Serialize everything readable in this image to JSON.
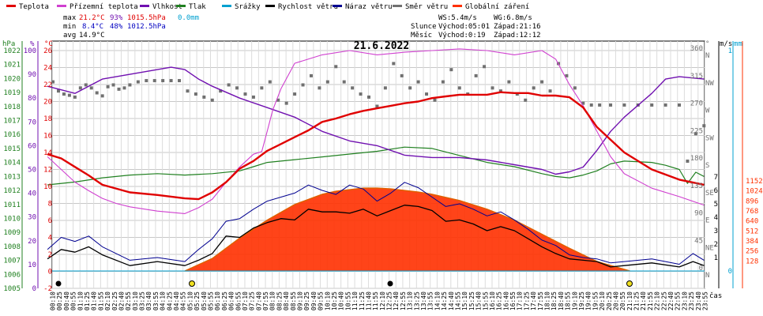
{
  "legend": [
    {
      "label": "Teplota",
      "color": "#e00000"
    },
    {
      "label": "Přízemní teplota",
      "color": "#d040d0"
    },
    {
      "label": "Vlhkost",
      "color": "#7010b0"
    },
    {
      "label": "Tlak",
      "color": "#208020"
    },
    {
      "label": "Srážky",
      "color": "#00a0d0"
    },
    {
      "label": "Rychlost větru",
      "color": "#000000"
    },
    {
      "label": "Náraz větru",
      "color": "#000090"
    },
    {
      "label": "Směr větru",
      "color": "#707070"
    },
    {
      "label": "Globální záření",
      "color": "#ff3000"
    }
  ],
  "stats": {
    "max_label": "max",
    "max_temp": "21.2°C",
    "max_hum": "93%",
    "max_press": "1015.5hPa",
    "max_rain": "0.0mm",
    "min_label": "min",
    "min_temp": "8.4°C",
    "min_hum": "48%",
    "min_press": "1012.5hPa",
    "avg_label": "avg",
    "avg_temp": "14.9°C"
  },
  "astro": {
    "ws": "WS:5.4m/s",
    "wg": "WG:6.8m/s",
    "sun_label": "Slunce",
    "sun_rise": "Východ:05:01",
    "sun_set": "Západ:21:16",
    "moon_label": "Měsíc",
    "moon_rise": "Východ:0:19",
    "moon_set": "Západ:12:12"
  },
  "date": "21.6.2022",
  "axis_units": {
    "hpa": "hPa",
    "pct": "%",
    "temp": "°C",
    "wind": "m/s",
    "rain": "mm",
    "dir": "°",
    "time": "čas"
  },
  "colors": {
    "temp": "#e00000",
    "ground": "#d040d0",
    "hum": "#7010b0",
    "press": "#208020",
    "rain": "#00a0d0",
    "wind": "#000000",
    "gust": "#000090",
    "dir": "#707070",
    "solar": "#ff3000",
    "solar_fill": "#ff3000",
    "grid": "#c8c8c8"
  },
  "chart_data": {
    "type": "line",
    "title": "21.6.2022",
    "xlabel": "čas",
    "x_range": [
      "00:10",
      "23:55"
    ],
    "x_ticks": [
      "00:10",
      "00:25",
      "00:40",
      "00:55",
      "01:10",
      "01:25",
      "01:40",
      "01:55",
      "02:10",
      "02:25",
      "02:40",
      "02:55",
      "03:10",
      "03:25",
      "03:40",
      "03:55",
      "04:10",
      "04:25",
      "04:40",
      "04:55",
      "05:10",
      "05:25",
      "05:40",
      "05:55",
      "06:10",
      "06:25",
      "06:40",
      "06:55",
      "07:10",
      "07:25",
      "07:40",
      "07:55",
      "08:10",
      "08:25",
      "08:40",
      "08:55",
      "09:10",
      "09:25",
      "09:40",
      "09:55",
      "10:10",
      "10:25",
      "10:40",
      "10:55",
      "11:10",
      "11:25",
      "11:40",
      "11:55",
      "12:10",
      "12:25",
      "12:40",
      "12:55",
      "13:10",
      "13:25",
      "13:40",
      "13:55",
      "14:10",
      "14:25",
      "14:40",
      "14:55",
      "15:10",
      "15:25",
      "15:40",
      "15:55",
      "16:10",
      "16:25",
      "16:40",
      "16:55",
      "17:10",
      "17:25",
      "17:40",
      "17:55",
      "18:10",
      "18:25",
      "18:40",
      "18:55",
      "19:10",
      "19:25",
      "19:40",
      "19:55",
      "20:10",
      "20:25",
      "20:40",
      "20:55",
      "21:10",
      "21:25",
      "21:40",
      "21:55",
      "22:10",
      "22:25",
      "22:40",
      "22:55",
      "23:10",
      "23:25",
      "23:40",
      "23:55"
    ],
    "axes": {
      "pressure_hpa": {
        "range": [
          1005,
          1023
        ],
        "ticks": [
          1005,
          1006,
          1007,
          1008,
          1009,
          1010,
          1011,
          1012,
          1013,
          1014,
          1015,
          1016,
          1017,
          1018,
          1019,
          1020,
          1021,
          1022
        ]
      },
      "humidity_pct": {
        "range": [
          0,
          100
        ],
        "ticks": [
          0,
          10,
          20,
          30,
          40,
          50,
          60,
          70,
          80,
          90,
          100
        ]
      },
      "temperature_c": {
        "range": [
          -2,
          26
        ],
        "ticks": [
          -2,
          0,
          2,
          4,
          6,
          8,
          10,
          12,
          14,
          16,
          18,
          20,
          22,
          24,
          26
        ]
      },
      "wind_ms": {
        "range": [
          0,
          7
        ],
        "ticks": [
          1,
          2,
          3,
          4,
          5,
          6,
          7
        ]
      },
      "rain_mm": {
        "range": [
          0,
          1
        ],
        "ticks": [
          0,
          1
        ]
      },
      "direction_deg": {
        "ticks": [
          {
            "v": 0,
            "l": "N"
          },
          {
            "v": 45,
            "l": "NE"
          },
          {
            "v": 90,
            "l": "E"
          },
          {
            "v": 135,
            "l": "SE"
          },
          {
            "v": 180,
            "l": "S"
          },
          {
            "v": 225,
            "l": "SW"
          },
          {
            "v": 270,
            "l": "W"
          },
          {
            "v": 315,
            "l": "NW"
          },
          {
            "v": 360,
            "l": "N"
          }
        ]
      },
      "solar_wm2": {
        "range": [
          0,
          1152
        ],
        "ticks": [
          128,
          256,
          384,
          512,
          640,
          768,
          896,
          1024,
          1152
        ]
      }
    },
    "series": [
      {
        "name": "Teplota",
        "unit": "°C",
        "x": [
          0,
          0.5,
          1,
          1.5,
          2,
          3,
          4,
          5,
          5.5,
          6,
          6.5,
          7,
          7.5,
          8,
          8.5,
          9,
          9.5,
          10,
          10.5,
          11,
          11.5,
          12,
          12.5,
          13,
          13.5,
          14,
          14.5,
          15,
          15.5,
          16,
          16.5,
          17,
          17.5,
          18,
          18.5,
          19,
          19.5,
          20,
          21,
          22,
          23,
          23.9
        ],
        "y": [
          13.8,
          13.3,
          12.3,
          11.3,
          10.2,
          9.3,
          9.0,
          8.6,
          8.5,
          9.3,
          10.5,
          12.1,
          13.0,
          14.2,
          15.0,
          15.8,
          16.6,
          17.6,
          18.0,
          18.5,
          18.9,
          19.2,
          19.5,
          19.8,
          20.0,
          20.4,
          20.6,
          20.8,
          20.8,
          20.8,
          21.1,
          21.0,
          21.0,
          20.7,
          20.7,
          20.5,
          19.3,
          17.0,
          14.0,
          12.0,
          10.8,
          10.2
        ]
      },
      {
        "name": "Přízemní teplota",
        "unit": "°C",
        "x": [
          0,
          0.5,
          1,
          1.5,
          2,
          2.5,
          3,
          4,
          5,
          5.5,
          6,
          6.5,
          7,
          7.5,
          7.8,
          8,
          8.2,
          8.5,
          9,
          10,
          11,
          12,
          13,
          14,
          15,
          16,
          17,
          18,
          18.5,
          19,
          19.5,
          20,
          20.5,
          21,
          22,
          23,
          23.9
        ],
        "y": [
          13.5,
          12.0,
          10.5,
          9.5,
          8.6,
          8.0,
          7.6,
          7.1,
          6.8,
          7.5,
          8.5,
          10.5,
          12.3,
          13.8,
          14.1,
          16.5,
          19.0,
          21.5,
          24.5,
          25.5,
          26.0,
          25.5,
          25.8,
          26.0,
          26.2,
          26.0,
          25.5,
          26.0,
          25.0,
          22.0,
          19.5,
          16.5,
          13.5,
          11.5,
          9.8,
          8.8,
          7.8
        ]
      },
      {
        "name": "Vlhkost",
        "unit": "%",
        "x": [
          0,
          1,
          2,
          3,
          4,
          4.5,
          5,
          5.5,
          6,
          7,
          8,
          9,
          10,
          11,
          12,
          13,
          14,
          15,
          16,
          17,
          18,
          18.5,
          19,
          19.5,
          20,
          20.5,
          21,
          22,
          22.5,
          23,
          23.9
        ],
        "y": [
          85,
          82,
          88,
          90,
          92,
          93,
          92,
          88,
          85,
          80,
          76,
          72,
          66,
          62,
          60,
          56,
          55,
          55,
          54,
          52,
          50,
          48,
          49,
          51,
          58,
          66,
          72,
          82,
          88,
          89,
          88
        ]
      },
      {
        "name": "Tlak",
        "unit": "hPa",
        "x": [
          0,
          1,
          2,
          3,
          4,
          5,
          6,
          7,
          7.5,
          8,
          9,
          10,
          11,
          12,
          13,
          14,
          15,
          16,
          17,
          18,
          18.5,
          19,
          19.5,
          20,
          20.5,
          21,
          22,
          22.5,
          23,
          23.3,
          23.6,
          23.9
        ],
        "y": [
          1012.4,
          1012.6,
          1012.9,
          1013.1,
          1013.2,
          1013.1,
          1013.2,
          1013.4,
          1013.7,
          1014.0,
          1014.2,
          1014.4,
          1014.6,
          1014.8,
          1015.1,
          1015.0,
          1014.5,
          1014.0,
          1013.7,
          1013.2,
          1013.0,
          1012.9,
          1013.1,
          1013.4,
          1013.9,
          1014.1,
          1014.0,
          1013.8,
          1013.5,
          1012.5,
          1013.3,
          1013.0
        ]
      },
      {
        "name": "Rychlost větru",
        "unit": "m/s",
        "x": [
          0,
          0.5,
          1,
          1.5,
          2,
          3,
          4,
          5,
          5.5,
          6,
          6.5,
          7,
          7.5,
          8,
          8.5,
          9,
          9.5,
          10,
          10.5,
          11,
          11.5,
          12,
          12.5,
          13,
          13.5,
          14,
          14.5,
          15,
          15.5,
          16,
          16.5,
          17,
          17.5,
          18,
          18.5,
          19,
          19.5,
          20,
          20.5,
          21,
          22,
          23,
          23.5,
          23.9
        ],
        "y": [
          0.9,
          1.6,
          1.4,
          1.8,
          1.2,
          0.4,
          0.7,
          0.4,
          0.8,
          1.3,
          2.6,
          2.5,
          3.2,
          3.6,
          3.9,
          3.8,
          4.6,
          4.4,
          4.4,
          4.3,
          4.6,
          4.1,
          4.5,
          4.9,
          4.8,
          4.5,
          3.7,
          3.8,
          3.5,
          3.0,
          3.3,
          3.0,
          2.4,
          1.8,
          1.3,
          0.9,
          0.8,
          0.7,
          0.3,
          0.4,
          0.6,
          0.3,
          0.7,
          0.4
        ]
      },
      {
        "name": "Náraz větru",
        "unit": "m/s",
        "x": [
          0,
          0.5,
          1,
          1.5,
          2,
          3,
          4,
          5,
          5.5,
          6,
          6.5,
          7,
          7.5,
          8,
          8.5,
          9,
          9.5,
          10,
          10.5,
          11,
          11.5,
          12,
          12.5,
          13,
          13.5,
          14,
          14.5,
          15,
          15.5,
          16,
          16.5,
          17,
          17.5,
          18,
          18.5,
          19,
          19.5,
          20,
          20.5,
          21,
          22,
          23,
          23.5,
          23.9
        ],
        "y": [
          1.6,
          2.5,
          2.2,
          2.6,
          1.8,
          0.8,
          1.0,
          0.7,
          1.6,
          2.4,
          3.7,
          3.9,
          4.6,
          5.2,
          5.5,
          5.8,
          6.4,
          6.0,
          5.7,
          6.4,
          6.1,
          5.2,
          5.8,
          6.6,
          6.2,
          5.5,
          4.8,
          5.0,
          4.6,
          4.1,
          4.4,
          3.8,
          3.1,
          2.3,
          1.9,
          1.2,
          1.0,
          0.9,
          0.6,
          0.7,
          0.9,
          0.5,
          1.3,
          0.8
        ]
      },
      {
        "name": "Globální záření",
        "unit": "W/m²",
        "x": [
          5,
          6,
          7,
          8,
          9,
          10,
          10.5,
          11,
          11.5,
          12,
          12.5,
          13,
          13.5,
          14,
          15,
          16,
          17,
          18,
          19,
          20,
          21.2
        ],
        "y": [
          0,
          160,
          420,
          650,
          850,
          980,
          1020,
          1040,
          1060,
          1060,
          1050,
          1030,
          1010,
          980,
          900,
          790,
          650,
          470,
          290,
          120,
          0
        ]
      },
      {
        "name": "Směr větru",
        "unit": "°",
        "x": [
          0.2,
          0.4,
          0.6,
          0.8,
          1.0,
          1.2,
          1.4,
          1.6,
          1.8,
          2.0,
          2.2,
          2.4,
          2.6,
          2.8,
          3.0,
          3.3,
          3.6,
          3.9,
          4.2,
          4.5,
          4.8,
          5.1,
          5.4,
          5.7,
          6.0,
          6.3,
          6.6,
          6.9,
          7.2,
          7.5,
          7.8,
          8.1,
          8.4,
          8.7,
          9.0,
          9.3,
          9.6,
          9.9,
          10.2,
          10.5,
          10.8,
          11.1,
          11.4,
          11.7,
          12.0,
          12.3,
          12.6,
          12.9,
          13.2,
          13.5,
          13.8,
          14.1,
          14.4,
          14.7,
          15.0,
          15.3,
          15.6,
          15.9,
          16.2,
          16.5,
          16.8,
          17.1,
          17.4,
          17.7,
          18.0,
          18.3,
          18.6,
          18.9,
          19.2,
          19.5,
          19.8,
          20.1,
          20.5,
          21.0,
          21.5,
          22.0,
          22.5,
          23.0,
          23.3,
          23.6,
          23.9
        ],
        "y": [
          310,
          295,
          290,
          288,
          285,
          300,
          305,
          300,
          292,
          287,
          302,
          305,
          298,
          300,
          305,
          310,
          312,
          312,
          312,
          312,
          312,
          295,
          290,
          285,
          280,
          295,
          305,
          300,
          290,
          285,
          300,
          310,
          280,
          275,
          290,
          305,
          320,
          300,
          310,
          335,
          310,
          300,
          290,
          285,
          270,
          300,
          340,
          320,
          300,
          310,
          290,
          280,
          310,
          330,
          300,
          290,
          320,
          335,
          300,
          295,
          310,
          290,
          280,
          300,
          310,
          295,
          340,
          320,
          300,
          275,
          272,
          272,
          272,
          272,
          272,
          272,
          272,
          272,
          180,
          225,
          238
        ]
      }
    ]
  }
}
